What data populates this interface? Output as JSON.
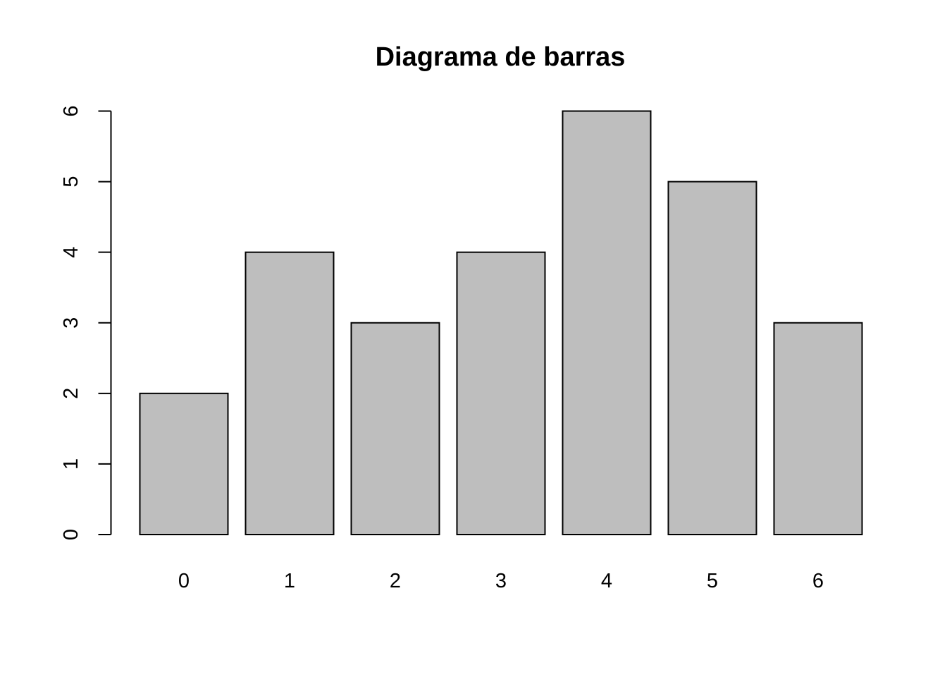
{
  "chart_data": {
    "type": "bar",
    "title": "Diagrama de barras",
    "xlabel": "",
    "ylabel": "",
    "categories": [
      "0",
      "1",
      "2",
      "3",
      "4",
      "5",
      "6"
    ],
    "values": [
      2,
      4,
      3,
      4,
      6,
      5,
      3
    ],
    "ylim": [
      0,
      6
    ],
    "yticks": [
      "0",
      "1",
      "2",
      "3",
      "4",
      "5",
      "6"
    ],
    "grid": false,
    "legend": "none",
    "bar_color": "#bebebe",
    "edge_color": "#000000"
  }
}
